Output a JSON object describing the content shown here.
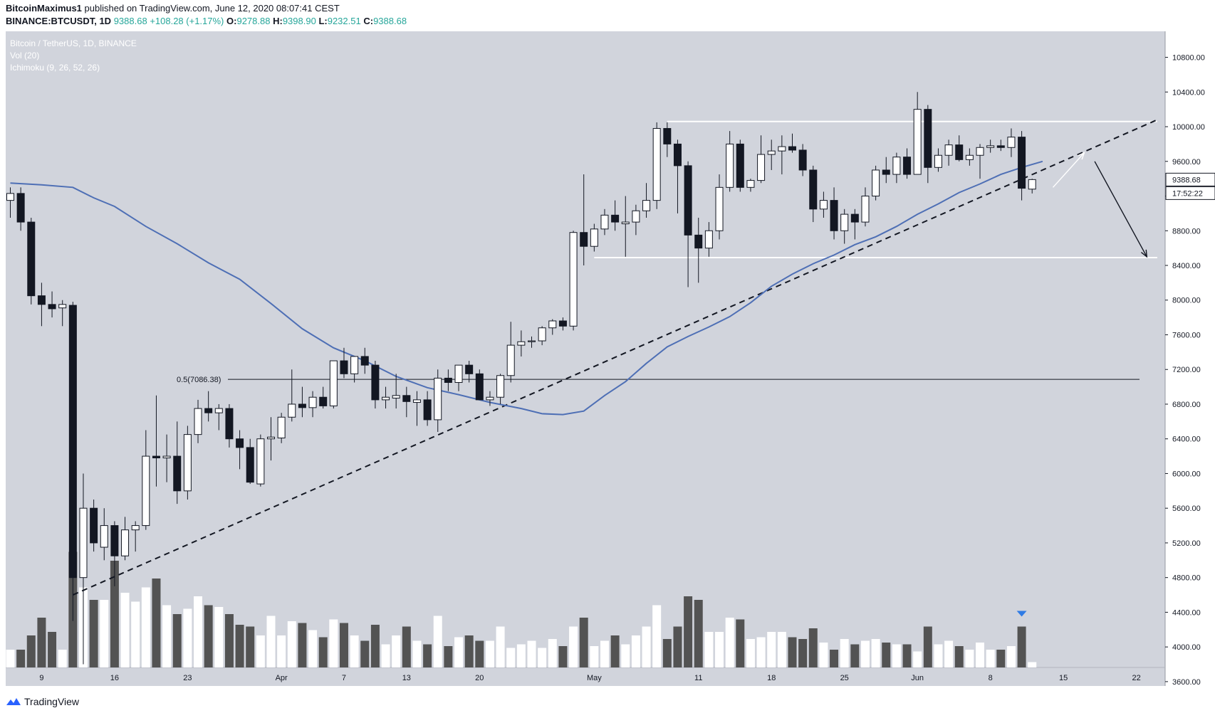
{
  "header": {
    "author": "BitcoinMaximus1",
    "published_text": "published on TradingView.com, June 12, 2020 08:07:41 CEST",
    "symbol": "BINANCE:BTCUSDT, 1D",
    "last_price": "9388.68",
    "change": "+108.28 (+1.17%)",
    "o_label": "O:",
    "o": "9278.88",
    "h_label": "H:",
    "h": "9398.90",
    "l_label": "L:",
    "l": "9232.51",
    "c_label": "C:",
    "c": "9388.68"
  },
  "legend": {
    "line1": "Bitcoin / TetherUS, 1D, BINANCE",
    "line2": "Vol (20)",
    "line3": "Ichimoku (9, 26, 52, 26)"
  },
  "price_label": "9388.68",
  "countdown_label": "17:52:22",
  "fib_label": "0.5(7086.38)",
  "footer": {
    "brand": "TradingView"
  },
  "colors": {
    "background": "#d1d4dc",
    "bull_candle": "#ffffff",
    "bear_candle": "#131722",
    "baseline": "#4e6fb5",
    "header_green": "#26a69a",
    "volume_up": "#ffffff",
    "volume_down": "#535353",
    "marker": "#2f7be5"
  },
  "chart_data": {
    "type": "candlestick",
    "y_axis": {
      "ticks": [
        3600,
        4000,
        4400,
        4800,
        5200,
        5600,
        6000,
        6400,
        6800,
        7200,
        7600,
        8000,
        8400,
        8800,
        9200,
        9600,
        10000,
        10400,
        10800
      ],
      "range": [
        3550,
        11100
      ]
    },
    "x_axis": {
      "tick_labels": [
        {
          "label": "9",
          "idx": 3
        },
        {
          "label": "16",
          "idx": 10
        },
        {
          "label": "23",
          "idx": 17
        },
        {
          "label": "Apr",
          "idx": 26
        },
        {
          "label": "7",
          "idx": 32
        },
        {
          "label": "13",
          "idx": 38
        },
        {
          "label": "20",
          "idx": 45
        },
        {
          "label": "May",
          "idx": 56
        },
        {
          "label": "11",
          "idx": 66
        },
        {
          "label": "18",
          "idx": 73
        },
        {
          "label": "25",
          "idx": 80
        },
        {
          "label": "Jun",
          "idx": 87
        },
        {
          "label": "8",
          "idx": 94
        },
        {
          "label": "15",
          "idx": 101
        },
        {
          "label": "22",
          "idx": 108
        }
      ]
    },
    "candles": [
      {
        "o": 9150,
        "h": 9300,
        "l": 8950,
        "c": 9230
      },
      {
        "o": 9230,
        "h": 9300,
        "l": 8800,
        "c": 8900
      },
      {
        "o": 8900,
        "h": 8950,
        "l": 7950,
        "c": 8050
      },
      {
        "o": 8050,
        "h": 8200,
        "l": 7700,
        "c": 7950
      },
      {
        "o": 7950,
        "h": 8100,
        "l": 7800,
        "c": 7900
      },
      {
        "o": 7910,
        "h": 8000,
        "l": 7700,
        "c": 7950
      },
      {
        "o": 7940,
        "h": 7980,
        "l": 4300,
        "c": 4800
      },
      {
        "o": 4800,
        "h": 6000,
        "l": 3800,
        "c": 5600
      },
      {
        "o": 5600,
        "h": 5700,
        "l": 5100,
        "c": 5200
      },
      {
        "o": 5150,
        "h": 5600,
        "l": 5000,
        "c": 5400
      },
      {
        "o": 5400,
        "h": 5450,
        "l": 4700,
        "c": 5050
      },
      {
        "o": 5050,
        "h": 5500,
        "l": 5000,
        "c": 5350
      },
      {
        "o": 5350,
        "h": 5450,
        "l": 5100,
        "c": 5400
      },
      {
        "o": 5400,
        "h": 6500,
        "l": 5350,
        "c": 6200
      },
      {
        "o": 6200,
        "h": 6900,
        "l": 5850,
        "c": 6180
      },
      {
        "o": 6180,
        "h": 6450,
        "l": 5900,
        "c": 6200
      },
      {
        "o": 6200,
        "h": 6600,
        "l": 5650,
        "c": 5800
      },
      {
        "o": 5800,
        "h": 6550,
        "l": 5700,
        "c": 6450
      },
      {
        "o": 6450,
        "h": 6850,
        "l": 6350,
        "c": 6750
      },
      {
        "o": 6750,
        "h": 6950,
        "l": 6600,
        "c": 6700
      },
      {
        "o": 6700,
        "h": 6800,
        "l": 6500,
        "c": 6750
      },
      {
        "o": 6750,
        "h": 6800,
        "l": 6300,
        "c": 6400
      },
      {
        "o": 6400,
        "h": 6500,
        "l": 6050,
        "c": 6300
      },
      {
        "o": 6300,
        "h": 6400,
        "l": 5880,
        "c": 5900
      },
      {
        "o": 5880,
        "h": 6450,
        "l": 5850,
        "c": 6400
      },
      {
        "o": 6400,
        "h": 6650,
        "l": 6150,
        "c": 6420
      },
      {
        "o": 6410,
        "h": 6700,
        "l": 6350,
        "c": 6650
      },
      {
        "o": 6650,
        "h": 7200,
        "l": 6600,
        "c": 6800
      },
      {
        "o": 6800,
        "h": 7000,
        "l": 6650,
        "c": 6760
      },
      {
        "o": 6760,
        "h": 6950,
        "l": 6650,
        "c": 6880
      },
      {
        "o": 6880,
        "h": 7000,
        "l": 6750,
        "c": 6780
      },
      {
        "o": 6780,
        "h": 7300,
        "l": 6750,
        "c": 7300
      },
      {
        "o": 7300,
        "h": 7450,
        "l": 7100,
        "c": 7150
      },
      {
        "o": 7150,
        "h": 7300,
        "l": 7050,
        "c": 7350
      },
      {
        "o": 7350,
        "h": 7450,
        "l": 7150,
        "c": 7250
      },
      {
        "o": 7250,
        "h": 7300,
        "l": 6750,
        "c": 6850
      },
      {
        "o": 6850,
        "h": 7000,
        "l": 6750,
        "c": 6880
      },
      {
        "o": 6870,
        "h": 7150,
        "l": 6750,
        "c": 6900
      },
      {
        "o": 6900,
        "h": 7000,
        "l": 6650,
        "c": 6830
      },
      {
        "o": 6820,
        "h": 6950,
        "l": 6550,
        "c": 6850
      },
      {
        "o": 6850,
        "h": 6950,
        "l": 6550,
        "c": 6620
      },
      {
        "o": 6620,
        "h": 7200,
        "l": 6480,
        "c": 7100
      },
      {
        "o": 7100,
        "h": 7200,
        "l": 6950,
        "c": 7050
      },
      {
        "o": 7050,
        "h": 7250,
        "l": 6950,
        "c": 7250
      },
      {
        "o": 7250,
        "h": 7300,
        "l": 7050,
        "c": 7150
      },
      {
        "o": 7150,
        "h": 7200,
        "l": 6850,
        "c": 6850
      },
      {
        "o": 6850,
        "h": 6950,
        "l": 6780,
        "c": 6880
      },
      {
        "o": 6880,
        "h": 7150,
        "l": 6800,
        "c": 7130
      },
      {
        "o": 7130,
        "h": 7750,
        "l": 7050,
        "c": 7480
      },
      {
        "o": 7480,
        "h": 7650,
        "l": 7350,
        "c": 7520
      },
      {
        "o": 7520,
        "h": 7580,
        "l": 7450,
        "c": 7530
      },
      {
        "o": 7530,
        "h": 7700,
        "l": 7480,
        "c": 7680
      },
      {
        "o": 7680,
        "h": 7780,
        "l": 7600,
        "c": 7760
      },
      {
        "o": 7760,
        "h": 7800,
        "l": 7650,
        "c": 7700
      },
      {
        "o": 7700,
        "h": 8800,
        "l": 7650,
        "c": 8780
      },
      {
        "o": 8780,
        "h": 9450,
        "l": 8400,
        "c": 8620
      },
      {
        "o": 8620,
        "h": 8880,
        "l": 8560,
        "c": 8820
      },
      {
        "o": 8820,
        "h": 9050,
        "l": 8750,
        "c": 8980
      },
      {
        "o": 8980,
        "h": 9150,
        "l": 8800,
        "c": 8900
      },
      {
        "o": 8880,
        "h": 9200,
        "l": 8500,
        "c": 8900
      },
      {
        "o": 8900,
        "h": 9100,
        "l": 8750,
        "c": 9030
      },
      {
        "o": 9030,
        "h": 9350,
        "l": 8950,
        "c": 9150
      },
      {
        "o": 9150,
        "h": 10050,
        "l": 9050,
        "c": 9980
      },
      {
        "o": 9980,
        "h": 10050,
        "l": 9650,
        "c": 9800
      },
      {
        "o": 9800,
        "h": 9850,
        "l": 9000,
        "c": 9550
      },
      {
        "o": 9550,
        "h": 9600,
        "l": 8150,
        "c": 8750
      },
      {
        "o": 8750,
        "h": 8950,
        "l": 8200,
        "c": 8600
      },
      {
        "o": 8600,
        "h": 8900,
        "l": 8500,
        "c": 8800
      },
      {
        "o": 8800,
        "h": 9450,
        "l": 8700,
        "c": 9300
      },
      {
        "o": 9300,
        "h": 9950,
        "l": 9250,
        "c": 9800
      },
      {
        "o": 9800,
        "h": 9850,
        "l": 9250,
        "c": 9300
      },
      {
        "o": 9300,
        "h": 9400,
        "l": 9250,
        "c": 9380
      },
      {
        "o": 9380,
        "h": 9900,
        "l": 9350,
        "c": 9680
      },
      {
        "o": 9680,
        "h": 9850,
        "l": 9500,
        "c": 9720
      },
      {
        "o": 9720,
        "h": 9900,
        "l": 9450,
        "c": 9770
      },
      {
        "o": 9770,
        "h": 9920,
        "l": 9700,
        "c": 9730
      },
      {
        "o": 9730,
        "h": 9800,
        "l": 9430,
        "c": 9500
      },
      {
        "o": 9500,
        "h": 9550,
        "l": 8900,
        "c": 9050
      },
      {
        "o": 9050,
        "h": 9250,
        "l": 8950,
        "c": 9150
      },
      {
        "o": 9150,
        "h": 9300,
        "l": 8700,
        "c": 8800
      },
      {
        "o": 8800,
        "h": 9050,
        "l": 8650,
        "c": 8990
      },
      {
        "o": 8990,
        "h": 9050,
        "l": 8700,
        "c": 8900
      },
      {
        "o": 8900,
        "h": 9300,
        "l": 8850,
        "c": 9200
      },
      {
        "o": 9200,
        "h": 9550,
        "l": 9150,
        "c": 9500
      },
      {
        "o": 9500,
        "h": 9650,
        "l": 9350,
        "c": 9450
      },
      {
        "o": 9450,
        "h": 9700,
        "l": 9350,
        "c": 9650
      },
      {
        "o": 9650,
        "h": 9750,
        "l": 9400,
        "c": 9450
      },
      {
        "o": 9450,
        "h": 10400,
        "l": 9450,
        "c": 10200
      },
      {
        "o": 10200,
        "h": 10250,
        "l": 9350,
        "c": 9530
      },
      {
        "o": 9530,
        "h": 9750,
        "l": 9480,
        "c": 9670
      },
      {
        "o": 9670,
        "h": 9850,
        "l": 9550,
        "c": 9790
      },
      {
        "o": 9790,
        "h": 9900,
        "l": 9600,
        "c": 9620
      },
      {
        "o": 9620,
        "h": 9750,
        "l": 9550,
        "c": 9670
      },
      {
        "o": 9670,
        "h": 9800,
        "l": 9400,
        "c": 9760
      },
      {
        "o": 9760,
        "h": 9850,
        "l": 9700,
        "c": 9780
      },
      {
        "o": 9780,
        "h": 9850,
        "l": 9720,
        "c": 9760
      },
      {
        "o": 9760,
        "h": 9980,
        "l": 9650,
        "c": 9880
      },
      {
        "o": 9880,
        "h": 9950,
        "l": 9150,
        "c": 9290
      },
      {
        "o": 9280,
        "h": 9400,
        "l": 9230,
        "c": 9390
      }
    ],
    "volumes": [
      1.0,
      1.0,
      1.8,
      2.8,
      2.0,
      1.0,
      6.5,
      4.5,
      3.8,
      3.8,
      6.0,
      4.2,
      3.7,
      4.5,
      5.0,
      3.5,
      3.0,
      3.3,
      4.0,
      3.5,
      3.4,
      3.0,
      2.4,
      2.3,
      1.8,
      2.9,
      1.8,
      2.6,
      2.5,
      2.1,
      1.7,
      2.7,
      2.5,
      1.8,
      1.5,
      2.4,
      1.3,
      1.8,
      2.3,
      1.5,
      1.3,
      2.9,
      1.2,
      1.7,
      1.8,
      1.5,
      1.5,
      2.3,
      1.1,
      1.3,
      1.5,
      1.1,
      1.6,
      1.2,
      2.3,
      2.8,
      1.2,
      1.5,
      1.8,
      1.3,
      1.8,
      2.3,
      3.5,
      1.6,
      2.3,
      4.0,
      3.8,
      2.0,
      2.0,
      2.8,
      2.7,
      1.6,
      1.7,
      2.0,
      2.0,
      1.7,
      1.6,
      2.2,
      1.4,
      1.0,
      1.6,
      1.3,
      1.5,
      1.6,
      1.4,
      1.3,
      1.3,
      0.9,
      2.3,
      1.3,
      1.5,
      1.2,
      1.0,
      1.4,
      1.0,
      1.0,
      1.2,
      2.3,
      0.3
    ],
    "baseline_line": [
      {
        "i": 0,
        "v": 9350
      },
      {
        "i": 3,
        "v": 9330
      },
      {
        "i": 6,
        "v": 9300
      },
      {
        "i": 8,
        "v": 9180
      },
      {
        "i": 10,
        "v": 9080
      },
      {
        "i": 13,
        "v": 8850
      },
      {
        "i": 16,
        "v": 8650
      },
      {
        "i": 19,
        "v": 8430
      },
      {
        "i": 22,
        "v": 8240
      },
      {
        "i": 25,
        "v": 7960
      },
      {
        "i": 28,
        "v": 7670
      },
      {
        "i": 31,
        "v": 7450
      },
      {
        "i": 34,
        "v": 7300
      },
      {
        "i": 37,
        "v": 7120
      },
      {
        "i": 40,
        "v": 6990
      },
      {
        "i": 43,
        "v": 6910
      },
      {
        "i": 46,
        "v": 6820
      },
      {
        "i": 49,
        "v": 6750
      },
      {
        "i": 51,
        "v": 6690
      },
      {
        "i": 53,
        "v": 6680
      },
      {
        "i": 55,
        "v": 6720
      },
      {
        "i": 57,
        "v": 6900
      },
      {
        "i": 59,
        "v": 7060
      },
      {
        "i": 61,
        "v": 7270
      },
      {
        "i": 63,
        "v": 7460
      },
      {
        "i": 65,
        "v": 7580
      },
      {
        "i": 67,
        "v": 7690
      },
      {
        "i": 69,
        "v": 7810
      },
      {
        "i": 71,
        "v": 7970
      },
      {
        "i": 73,
        "v": 8160
      },
      {
        "i": 75,
        "v": 8300
      },
      {
        "i": 77,
        "v": 8420
      },
      {
        "i": 79,
        "v": 8520
      },
      {
        "i": 81,
        "v": 8640
      },
      {
        "i": 83,
        "v": 8730
      },
      {
        "i": 85,
        "v": 8850
      },
      {
        "i": 87,
        "v": 8990
      },
      {
        "i": 89,
        "v": 9110
      },
      {
        "i": 91,
        "v": 9240
      },
      {
        "i": 93,
        "v": 9340
      },
      {
        "i": 95,
        "v": 9450
      },
      {
        "i": 97,
        "v": 9530
      },
      {
        "i": 99,
        "v": 9600
      }
    ],
    "fib_level": 7086.38,
    "range_top": {
      "i1": 63,
      "i2": 110,
      "v": 10060
    },
    "range_bottom": {
      "i1": 56,
      "i2": 110,
      "v": 8490
    },
    "trendline": {
      "i1": 6,
      "v1": 4600,
      "i2": 110,
      "v2": 10080
    },
    "projection": [
      {
        "i": 100,
        "v": 9300
      },
      {
        "i": 103,
        "v": 9700
      }
    ],
    "projection2": [
      {
        "i": 104,
        "v": 9600
      },
      {
        "i": 109,
        "v": 8500
      }
    ]
  }
}
